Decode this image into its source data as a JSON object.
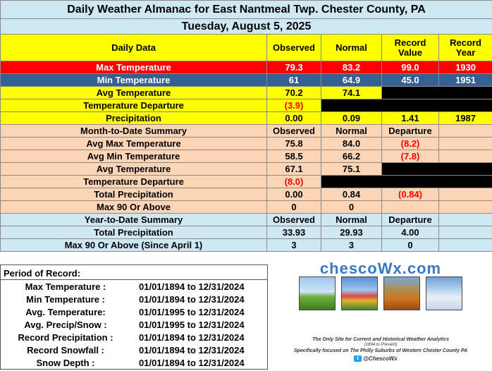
{
  "title": "Daily Weather Almanac for East Nantmeal Twp.  Chester County, PA",
  "date": "Tuesday, August 5, 2025",
  "daily": {
    "headers": [
      "Daily Data",
      "Observed",
      "Normal",
      "Record Value",
      "Record Year"
    ],
    "max_temp": {
      "label": "Max Temperature",
      "observed": "79.3",
      "normal": "83.2",
      "record": "99.0",
      "year": "1930"
    },
    "min_temp": {
      "label": "Min Temperature",
      "observed": "61",
      "normal": "64.9",
      "record": "45.0",
      "year": "1951"
    },
    "avg_temp": {
      "label": "Avg Temperature",
      "observed": "70.2",
      "normal": "74.1"
    },
    "departure": {
      "label": "Temperature Departure",
      "observed": "(3.9)"
    },
    "precip": {
      "label": "Precipitation",
      "observed": "0.00",
      "normal": "0.09",
      "record": "1.41",
      "year": "1987"
    }
  },
  "mtd": {
    "headers": [
      "Month-to-Date Summary",
      "Observed",
      "Normal",
      "Departure"
    ],
    "avg_max": {
      "label": "Avg Max Temperature",
      "observed": "75.8",
      "normal": "84.0",
      "departure": "(8.2)"
    },
    "avg_min": {
      "label": "Avg Min Temperature",
      "observed": "58.5",
      "normal": "66.2",
      "departure": "(7.8)"
    },
    "avg_temp": {
      "label": "Avg Temperature",
      "observed": "67.1",
      "normal": "75.1"
    },
    "departure": {
      "label": "Temperature Departure",
      "observed": "(8.0)"
    },
    "total_precip": {
      "label": "Total Precipitation",
      "observed": "0.00",
      "normal": "0.84",
      "departure": "(0.84)"
    },
    "max90": {
      "label": "Max 90 Or Above",
      "observed": "0",
      "normal": "0"
    }
  },
  "ytd": {
    "headers": [
      "Year-to-Date Summary",
      "Observed",
      "Normal",
      "Departure"
    ],
    "total_precip": {
      "label": "Total Precipitation",
      "observed": "33.93",
      "normal": "29.93",
      "departure": "4.00"
    },
    "max90": {
      "label": "Max 90 Or Above (Since April 1)",
      "observed": "3",
      "normal": "3",
      "departure": "0"
    }
  },
  "period_of_record": {
    "title": "Period of Record:",
    "rows": [
      {
        "label": "Max Temperature :",
        "range": "01/01/1894 to 12/31/2024"
      },
      {
        "label": "Min Temperature :",
        "range": "01/01/1894 to 12/31/2024"
      },
      {
        "label": "Avg. Temperature:",
        "range": "01/01/1995 to 12/31/2024"
      },
      {
        "label": "Avg. Precip/Snow :",
        "range": "01/01/1995 to 12/31/2024"
      },
      {
        "label": "Record Precipitation :",
        "range": "01/01/1894 to 12/31/2024"
      },
      {
        "label": "Record Snowfall :",
        "range": "01/01/1894 to 12/31/2024"
      },
      {
        "label": "Snow Depth :",
        "range": "01/01/1894 to 12/31/2024"
      }
    ]
  },
  "logo": {
    "brand": "chescoWx.com",
    "tagline1": "The Only Site for Current and Historical Weather Analytics",
    "tagline2": "(1894 to Present)",
    "tagline3": "Specifically focused on The Philly Suburbs of Western Chester County PA",
    "handle": "@ChescoWx",
    "twitter_glyph": "t"
  },
  "colors": {
    "title_bg": "#cfe8f3",
    "header_yellow": "#ffff00",
    "max_row": "#ff0000",
    "min_row": "#366092",
    "summary_bg": "#fbd5b5",
    "negative_text": "#ff0000",
    "brand_blue": "#3a78c2"
  }
}
